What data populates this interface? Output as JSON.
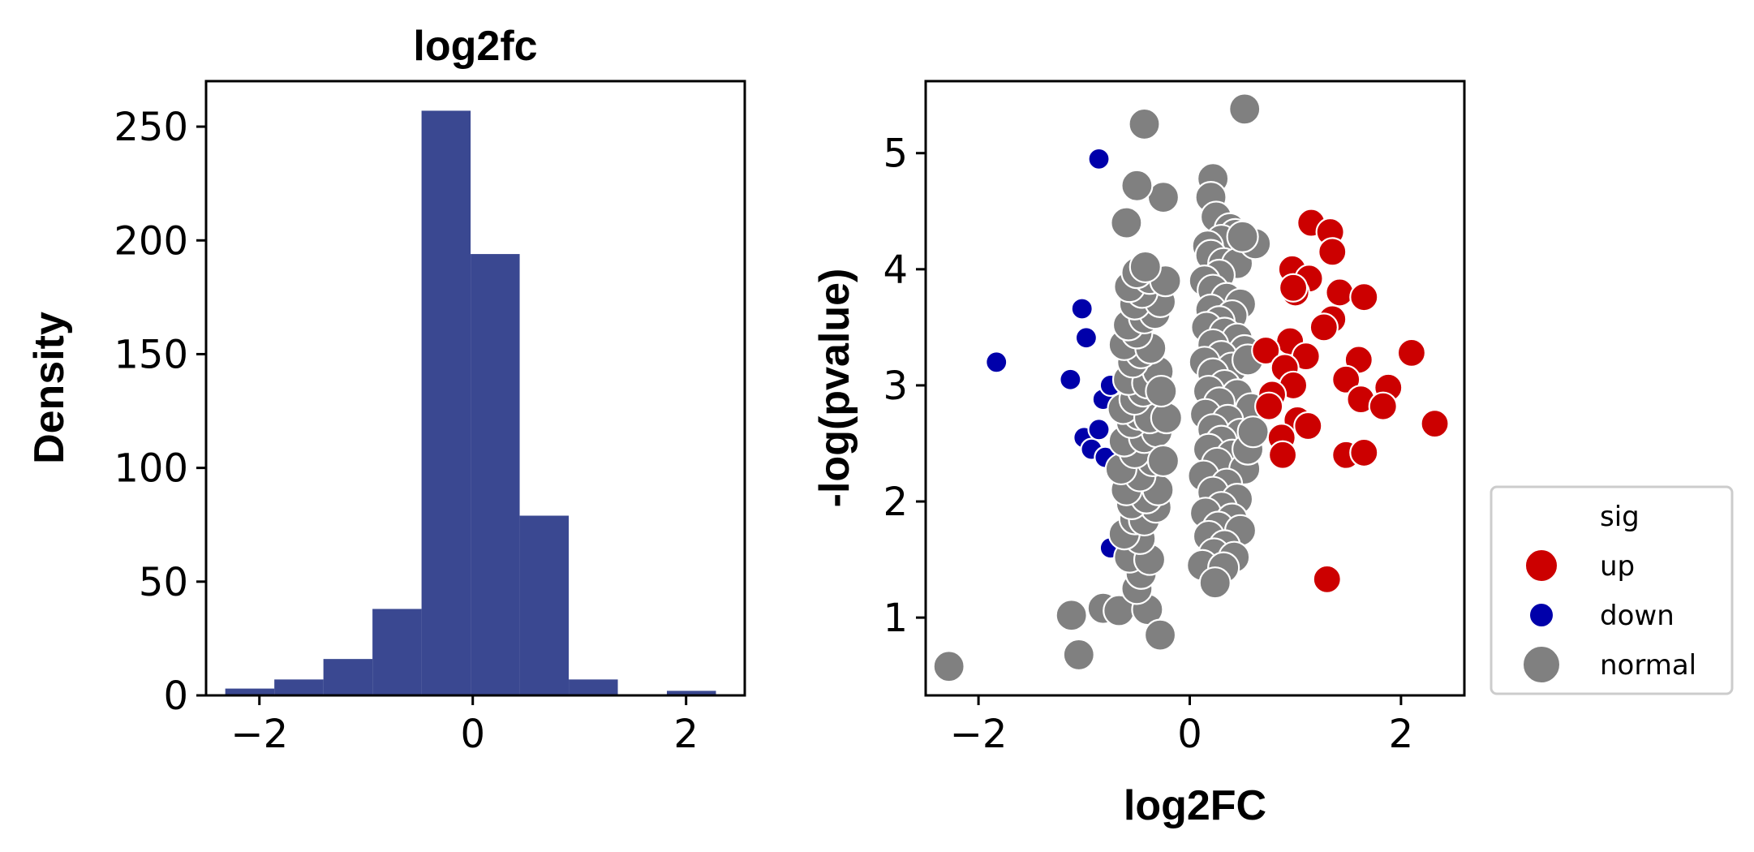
{
  "colors": {
    "hist_bar": "#3a4891",
    "up": "#cc0000",
    "down": "#0000aa",
    "normal": "#808080",
    "point_edge": "#ffffff"
  },
  "chart_data": [
    {
      "type": "bar",
      "title": "log2fc",
      "xlabel": "",
      "ylabel": "Density",
      "xlim": [
        -2.5,
        2.55
      ],
      "ylim": [
        0,
        270
      ],
      "xticks": [
        -2,
        0,
        2
      ],
      "xtick_labels": [
        "−2",
        "0",
        "2"
      ],
      "yticks": [
        0,
        50,
        100,
        150,
        200,
        250
      ],
      "ytick_labels": [
        "0",
        "50",
        "100",
        "150",
        "200",
        "250"
      ],
      "bins": [
        {
          "x0": -2.32,
          "x1": -1.86,
          "value": 3
        },
        {
          "x0": -1.86,
          "x1": -1.4,
          "value": 7
        },
        {
          "x0": -1.4,
          "x1": -0.94,
          "value": 16
        },
        {
          "x0": -0.94,
          "x1": -0.48,
          "value": 38
        },
        {
          "x0": -0.48,
          "x1": -0.02,
          "value": 257
        },
        {
          "x0": -0.02,
          "x1": 0.44,
          "value": 194
        },
        {
          "x0": 0.44,
          "x1": 0.9,
          "value": 79
        },
        {
          "x0": 0.9,
          "x1": 1.36,
          "value": 7
        },
        {
          "x0": 1.36,
          "x1": 1.82,
          "value": 0
        },
        {
          "x0": 1.82,
          "x1": 2.28,
          "value": 2
        }
      ]
    },
    {
      "type": "scatter",
      "xlabel": "log2FC",
      "ylabel": "-log(pvalue)",
      "xlim": [
        -2.5,
        2.6
      ],
      "ylim": [
        0.33,
        5.62
      ],
      "xticks": [
        -2,
        0,
        2
      ],
      "xtick_labels": [
        "−2",
        "0",
        "2"
      ],
      "yticks": [
        1,
        2,
        3,
        4,
        5
      ],
      "ytick_labels": [
        "1",
        "2",
        "3",
        "4",
        "5"
      ],
      "legend": {
        "title": "sig",
        "placement": "outside lower right",
        "entries": [
          {
            "label": "up",
            "series": "up"
          },
          {
            "label": "down",
            "series": "down"
          },
          {
            "label": "normal",
            "series": "normal"
          }
        ]
      },
      "series": [
        {
          "name": "normal",
          "points": [
            [
              -2.28,
              0.58
            ],
            [
              -1.05,
              0.68
            ],
            [
              -1.12,
              1.02
            ],
            [
              -0.82,
              1.08
            ],
            [
              -0.67,
              1.06
            ],
            [
              -0.4,
              1.07
            ],
            [
              -0.28,
              0.85
            ],
            [
              -0.5,
              1.25
            ],
            [
              -0.46,
              1.38
            ],
            [
              -0.57,
              1.52
            ],
            [
              -0.38,
              1.5
            ],
            [
              -0.47,
              1.68
            ],
            [
              -0.62,
              1.72
            ],
            [
              -0.52,
              1.85
            ],
            [
              -0.43,
              1.84
            ],
            [
              -0.32,
              1.95
            ],
            [
              -0.55,
              1.98
            ],
            [
              -0.41,
              2.03
            ],
            [
              -0.3,
              2.1
            ],
            [
              -0.6,
              2.1
            ],
            [
              -0.47,
              2.22
            ],
            [
              -0.65,
              2.28
            ],
            [
              -0.35,
              2.35
            ],
            [
              -0.52,
              2.42
            ],
            [
              -0.62,
              2.52
            ],
            [
              -0.43,
              2.55
            ],
            [
              -0.31,
              2.6
            ],
            [
              -0.55,
              2.68
            ],
            [
              -0.48,
              2.75
            ],
            [
              -0.63,
              2.8
            ],
            [
              -0.38,
              2.72
            ],
            [
              -0.52,
              2.88
            ],
            [
              -0.44,
              2.95
            ],
            [
              -0.58,
              3.05
            ],
            [
              -0.4,
              3.02
            ],
            [
              -0.3,
              3.12
            ],
            [
              -0.54,
              3.2
            ],
            [
              -0.46,
              3.28
            ],
            [
              -0.62,
              3.35
            ],
            [
              -0.37,
              3.32
            ],
            [
              -0.5,
              3.45
            ],
            [
              -0.58,
              3.52
            ],
            [
              -0.43,
              3.58
            ],
            [
              -0.33,
              3.62
            ],
            [
              -0.52,
              3.7
            ],
            [
              -0.28,
              3.72
            ],
            [
              -0.45,
              3.8
            ],
            [
              -0.57,
              3.85
            ],
            [
              -0.38,
              3.92
            ],
            [
              -0.23,
              3.9
            ],
            [
              -0.5,
              3.97
            ],
            [
              -0.42,
              4.02
            ],
            [
              -0.6,
              4.4
            ],
            [
              -0.25,
              4.62
            ],
            [
              -0.5,
              4.72
            ],
            [
              -0.43,
              5.25
            ],
            [
              -0.25,
              2.35
            ],
            [
              -0.22,
              2.72
            ],
            [
              -0.27,
              2.95
            ],
            [
              0.52,
              5.38
            ],
            [
              0.22,
              4.78
            ],
            [
              0.2,
              4.62
            ],
            [
              0.25,
              4.45
            ],
            [
              0.38,
              4.35
            ],
            [
              0.43,
              4.3
            ],
            [
              0.3,
              4.25
            ],
            [
              0.17,
              4.2
            ],
            [
              0.2,
              4.12
            ],
            [
              0.32,
              4.05
            ],
            [
              0.45,
              4.05
            ],
            [
              0.28,
              3.95
            ],
            [
              0.14,
              3.9
            ],
            [
              0.22,
              3.82
            ],
            [
              0.35,
              3.75
            ],
            [
              0.48,
              3.7
            ],
            [
              0.2,
              3.65
            ],
            [
              0.4,
              3.6
            ],
            [
              0.28,
              3.55
            ],
            [
              0.16,
              3.5
            ],
            [
              0.33,
              3.45
            ],
            [
              0.45,
              3.4
            ],
            [
              0.22,
              3.35
            ],
            [
              0.52,
              3.3
            ],
            [
              0.3,
              3.25
            ],
            [
              0.14,
              3.2
            ],
            [
              0.4,
              3.15
            ],
            [
              0.22,
              3.1
            ],
            [
              0.33,
              3.0
            ],
            [
              0.18,
              2.95
            ],
            [
              0.45,
              2.92
            ],
            [
              0.28,
              2.85
            ],
            [
              0.58,
              2.8
            ],
            [
              0.15,
              2.75
            ],
            [
              0.36,
              2.7
            ],
            [
              0.22,
              2.62
            ],
            [
              0.48,
              2.58
            ],
            [
              0.3,
              2.52
            ],
            [
              0.18,
              2.45
            ],
            [
              0.4,
              2.4
            ],
            [
              0.26,
              2.33
            ],
            [
              0.52,
              2.28
            ],
            [
              0.13,
              2.22
            ],
            [
              0.35,
              2.15
            ],
            [
              0.22,
              2.08
            ],
            [
              0.45,
              2.02
            ],
            [
              0.3,
              1.95
            ],
            [
              0.15,
              1.9
            ],
            [
              0.4,
              1.85
            ],
            [
              0.27,
              1.78
            ],
            [
              0.48,
              1.75
            ],
            [
              0.18,
              1.7
            ],
            [
              0.33,
              1.62
            ],
            [
              0.23,
              1.55
            ],
            [
              0.42,
              1.52
            ],
            [
              0.12,
              1.45
            ],
            [
              0.32,
              1.43
            ],
            [
              0.24,
              1.3
            ],
            [
              0.55,
              2.45
            ],
            [
              0.6,
              2.6
            ],
            [
              0.55,
              3.22
            ],
            [
              0.62,
              4.22
            ],
            [
              0.5,
              4.28
            ]
          ]
        },
        {
          "name": "down",
          "points": [
            [
              -1.83,
              3.2
            ],
            [
              -1.13,
              3.05
            ],
            [
              -1.02,
              3.66
            ],
            [
              -0.98,
              3.41
            ],
            [
              -0.86,
              4.95
            ],
            [
              -1.0,
              2.55
            ],
            [
              -0.93,
              2.45
            ],
            [
              -0.86,
              2.62
            ],
            [
              -0.82,
              2.88
            ],
            [
              -0.75,
              3.0
            ],
            [
              -0.8,
              2.38
            ],
            [
              -0.75,
              1.6
            ]
          ]
        },
        {
          "name": "up",
          "points": [
            [
              1.15,
              4.4
            ],
            [
              1.33,
              4.32
            ],
            [
              1.35,
              4.15
            ],
            [
              0.97,
              4.0
            ],
            [
              1.13,
              3.92
            ],
            [
              1.0,
              3.8
            ],
            [
              1.42,
              3.8
            ],
            [
              1.65,
              3.76
            ],
            [
              1.35,
              3.57
            ],
            [
              1.27,
              3.5
            ],
            [
              0.95,
              3.38
            ],
            [
              0.72,
              3.3
            ],
            [
              1.1,
              3.25
            ],
            [
              2.1,
              3.28
            ],
            [
              1.6,
              3.22
            ],
            [
              0.9,
              3.15
            ],
            [
              1.48,
              3.05
            ],
            [
              0.98,
              3.0
            ],
            [
              1.88,
              2.98
            ],
            [
              0.78,
              2.92
            ],
            [
              1.62,
              2.88
            ],
            [
              0.75,
              2.82
            ],
            [
              1.83,
              2.82
            ],
            [
              1.02,
              2.7
            ],
            [
              1.12,
              2.65
            ],
            [
              2.32,
              2.67
            ],
            [
              0.87,
              2.55
            ],
            [
              0.88,
              2.4
            ],
            [
              1.48,
              2.4
            ],
            [
              1.65,
              2.42
            ],
            [
              1.3,
              1.33
            ],
            [
              0.98,
              3.84
            ]
          ]
        }
      ]
    }
  ]
}
